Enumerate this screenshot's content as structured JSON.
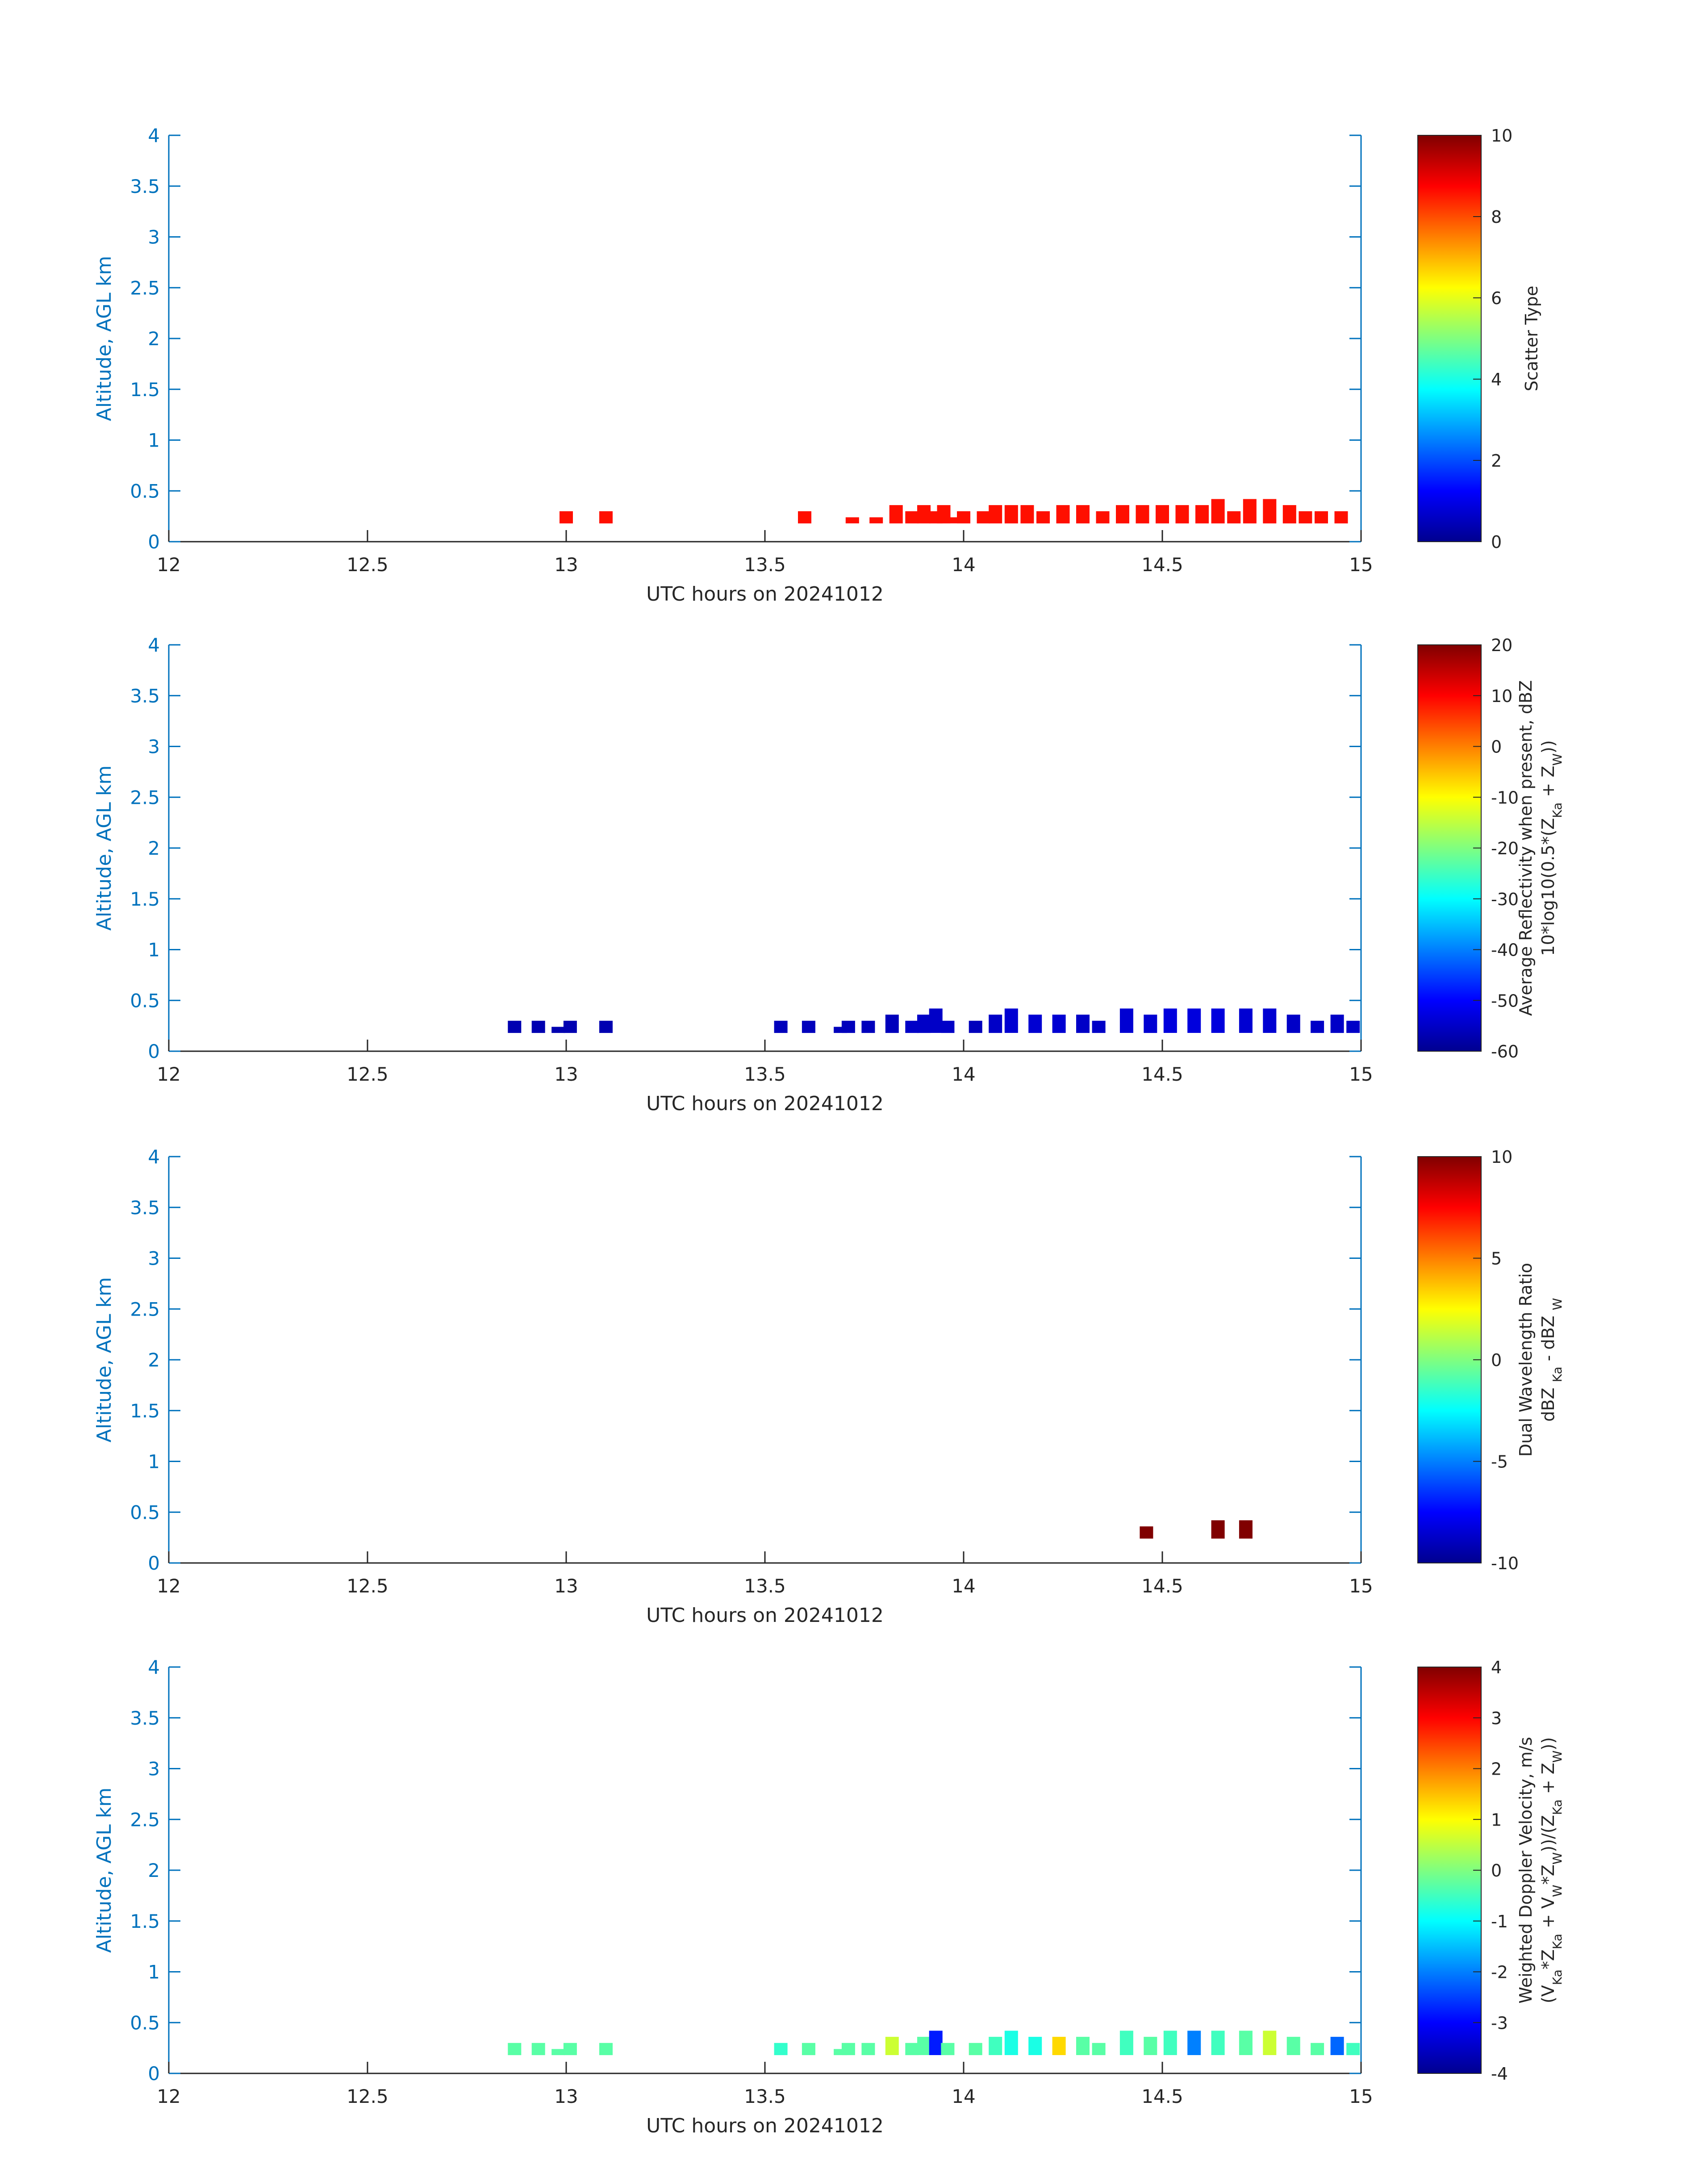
{
  "colors": {
    "axis": "#0072BD",
    "text": "#262626"
  },
  "chart_data": [
    {
      "type": "heatmap",
      "xlabel": "UTC hours on 20241012",
      "ylabel": "Altitude, AGL km",
      "xlim": [
        12,
        15
      ],
      "ylim": [
        0,
        4
      ],
      "x_ticks": [
        "12",
        "12.5",
        "13",
        "13.5",
        "14",
        "14.5",
        "15"
      ],
      "y_ticks": [
        "0",
        "0.5",
        "1",
        "1.5",
        "2",
        "2.5",
        "3",
        "3.5",
        "4"
      ],
      "colorbar": {
        "label_lines": [
          "Scatter Type"
        ],
        "range": [
          0,
          10
        ],
        "ticks": [
          "0",
          "2",
          "4",
          "6",
          "8",
          "10"
        ]
      },
      "columns": [
        {
          "x": 13.0,
          "bottom": 0.18,
          "top": 0.3,
          "value": 8.6
        },
        {
          "x": 13.1,
          "bottom": 0.18,
          "top": 0.3,
          "value": 8.6
        },
        {
          "x": 13.6,
          "bottom": 0.18,
          "top": 0.3,
          "value": 8.6
        },
        {
          "x": 13.72,
          "bottom": 0.18,
          "top": 0.24,
          "value": 8.6
        },
        {
          "x": 13.78,
          "bottom": 0.18,
          "top": 0.24,
          "value": 8.6
        },
        {
          "x": 13.83,
          "bottom": 0.18,
          "top": 0.36,
          "value": 8.6
        },
        {
          "x": 13.87,
          "bottom": 0.18,
          "top": 0.3,
          "value": 8.6
        },
        {
          "x": 13.9,
          "bottom": 0.18,
          "top": 0.36,
          "value": 8.6
        },
        {
          "x": 13.93,
          "bottom": 0.18,
          "top": 0.3,
          "value": 8.6
        },
        {
          "x": 13.95,
          "bottom": 0.18,
          "top": 0.36,
          "value": 8.6
        },
        {
          "x": 13.98,
          "bottom": 0.18,
          "top": 0.24,
          "value": 8.6
        },
        {
          "x": 14.0,
          "bottom": 0.18,
          "top": 0.3,
          "value": 8.6
        },
        {
          "x": 14.05,
          "bottom": 0.18,
          "top": 0.3,
          "value": 8.6
        },
        {
          "x": 14.08,
          "bottom": 0.18,
          "top": 0.36,
          "value": 8.6
        },
        {
          "x": 14.12,
          "bottom": 0.18,
          "top": 0.36,
          "value": 8.6
        },
        {
          "x": 14.16,
          "bottom": 0.18,
          "top": 0.36,
          "value": 8.6
        },
        {
          "x": 14.2,
          "bottom": 0.18,
          "top": 0.3,
          "value": 8.6
        },
        {
          "x": 14.25,
          "bottom": 0.18,
          "top": 0.36,
          "value": 8.6
        },
        {
          "x": 14.3,
          "bottom": 0.18,
          "top": 0.36,
          "value": 8.6
        },
        {
          "x": 14.35,
          "bottom": 0.18,
          "top": 0.3,
          "value": 8.6
        },
        {
          "x": 14.4,
          "bottom": 0.18,
          "top": 0.36,
          "value": 8.6
        },
        {
          "x": 14.45,
          "bottom": 0.18,
          "top": 0.36,
          "value": 8.6
        },
        {
          "x": 14.5,
          "bottom": 0.18,
          "top": 0.36,
          "value": 8.6
        },
        {
          "x": 14.55,
          "bottom": 0.18,
          "top": 0.36,
          "value": 8.6
        },
        {
          "x": 14.6,
          "bottom": 0.18,
          "top": 0.36,
          "value": 8.6
        },
        {
          "x": 14.64,
          "bottom": 0.18,
          "top": 0.42,
          "value": 8.6
        },
        {
          "x": 14.68,
          "bottom": 0.18,
          "top": 0.3,
          "value": 8.6
        },
        {
          "x": 14.72,
          "bottom": 0.18,
          "top": 0.42,
          "value": 8.6
        },
        {
          "x": 14.77,
          "bottom": 0.18,
          "top": 0.42,
          "value": 8.6
        },
        {
          "x": 14.82,
          "bottom": 0.18,
          "top": 0.36,
          "value": 8.6
        },
        {
          "x": 14.86,
          "bottom": 0.18,
          "top": 0.3,
          "value": 8.6
        },
        {
          "x": 14.9,
          "bottom": 0.18,
          "top": 0.3,
          "value": 8.6
        },
        {
          "x": 14.95,
          "bottom": 0.18,
          "top": 0.3,
          "value": 8.6
        }
      ]
    },
    {
      "type": "heatmap",
      "xlabel": "UTC hours on 20241012",
      "ylabel": "Altitude, AGL km",
      "xlim": [
        12,
        15
      ],
      "ylim": [
        0,
        4
      ],
      "x_ticks": [
        "12",
        "12.5",
        "13",
        "13.5",
        "14",
        "14.5",
        "15"
      ],
      "y_ticks": [
        "0",
        "0.5",
        "1",
        "1.5",
        "2",
        "2.5",
        "3",
        "3.5",
        "4"
      ],
      "colorbar": {
        "label_lines": [
          "Average Reflectivity when present, dBZ",
          "10*log10(0.5*(Z<sub>Ka</sub> + Z<sub>W</sub>))"
        ],
        "range": [
          -60,
          20
        ],
        "ticks": [
          "-60",
          "-50",
          "-40",
          "-30",
          "-20",
          "-10",
          "0",
          "10",
          "20"
        ]
      },
      "columns": [
        {
          "x": 12.87,
          "bottom": 0.18,
          "top": 0.3,
          "value": -57
        },
        {
          "x": 12.93,
          "bottom": 0.18,
          "top": 0.3,
          "value": -57
        },
        {
          "x": 12.98,
          "bottom": 0.18,
          "top": 0.24,
          "value": -57
        },
        {
          "x": 13.01,
          "bottom": 0.18,
          "top": 0.3,
          "value": -57
        },
        {
          "x": 13.1,
          "bottom": 0.18,
          "top": 0.3,
          "value": -57
        },
        {
          "x": 13.54,
          "bottom": 0.18,
          "top": 0.3,
          "value": -56
        },
        {
          "x": 13.61,
          "bottom": 0.18,
          "top": 0.3,
          "value": -56
        },
        {
          "x": 13.69,
          "bottom": 0.18,
          "top": 0.24,
          "value": -56
        },
        {
          "x": 13.71,
          "bottom": 0.18,
          "top": 0.3,
          "value": -56
        },
        {
          "x": 13.76,
          "bottom": 0.18,
          "top": 0.3,
          "value": -56
        },
        {
          "x": 13.82,
          "bottom": 0.18,
          "top": 0.36,
          "value": -56
        },
        {
          "x": 13.87,
          "bottom": 0.18,
          "top": 0.3,
          "value": -55
        },
        {
          "x": 13.9,
          "bottom": 0.18,
          "top": 0.36,
          "value": -55
        },
        {
          "x": 13.93,
          "bottom": 0.18,
          "top": 0.42,
          "value": -55
        },
        {
          "x": 13.96,
          "bottom": 0.18,
          "top": 0.3,
          "value": -55
        },
        {
          "x": 14.03,
          "bottom": 0.18,
          "top": 0.3,
          "value": -56
        },
        {
          "x": 14.08,
          "bottom": 0.18,
          "top": 0.36,
          "value": -55
        },
        {
          "x": 14.12,
          "bottom": 0.18,
          "top": 0.42,
          "value": -54
        },
        {
          "x": 14.18,
          "bottom": 0.18,
          "top": 0.36,
          "value": -54
        },
        {
          "x": 14.24,
          "bottom": 0.18,
          "top": 0.36,
          "value": -54
        },
        {
          "x": 14.3,
          "bottom": 0.18,
          "top": 0.36,
          "value": -55
        },
        {
          "x": 14.34,
          "bottom": 0.18,
          "top": 0.3,
          "value": -55
        },
        {
          "x": 14.41,
          "bottom": 0.18,
          "top": 0.42,
          "value": -54
        },
        {
          "x": 14.47,
          "bottom": 0.18,
          "top": 0.36,
          "value": -54
        },
        {
          "x": 14.52,
          "bottom": 0.18,
          "top": 0.42,
          "value": -53
        },
        {
          "x": 14.58,
          "bottom": 0.18,
          "top": 0.42,
          "value": -53
        },
        {
          "x": 14.64,
          "bottom": 0.18,
          "top": 0.42,
          "value": -53
        },
        {
          "x": 14.71,
          "bottom": 0.18,
          "top": 0.42,
          "value": -54
        },
        {
          "x": 14.77,
          "bottom": 0.18,
          "top": 0.42,
          "value": -54
        },
        {
          "x": 14.83,
          "bottom": 0.18,
          "top": 0.36,
          "value": -55
        },
        {
          "x": 14.89,
          "bottom": 0.18,
          "top": 0.3,
          "value": -55
        },
        {
          "x": 14.94,
          "bottom": 0.18,
          "top": 0.36,
          "value": -55
        },
        {
          "x": 14.98,
          "bottom": 0.18,
          "top": 0.3,
          "value": -55
        }
      ]
    },
    {
      "type": "heatmap",
      "xlabel": "UTC hours on 20241012",
      "ylabel": "Altitude, AGL km",
      "xlim": [
        12,
        15
      ],
      "ylim": [
        0,
        4
      ],
      "x_ticks": [
        "12",
        "12.5",
        "13",
        "13.5",
        "14",
        "14.5",
        "15"
      ],
      "y_ticks": [
        "0",
        "0.5",
        "1",
        "1.5",
        "2",
        "2.5",
        "3",
        "3.5",
        "4"
      ],
      "colorbar": {
        "label_lines": [
          "Dual Wavelength Ratio",
          "dBZ <sub>Ka</sub> - dBZ <sub>W</sub>"
        ],
        "range": [
          -10,
          10
        ],
        "ticks": [
          "-10",
          "-5",
          "0",
          "5",
          "10"
        ]
      },
      "columns": [
        {
          "x": 14.46,
          "bottom": 0.24,
          "top": 0.36,
          "value": 10
        },
        {
          "x": 14.64,
          "bottom": 0.24,
          "top": 0.42,
          "value": 10
        },
        {
          "x": 14.71,
          "bottom": 0.24,
          "top": 0.42,
          "value": 10
        }
      ]
    },
    {
      "type": "heatmap",
      "xlabel": "UTC hours on 20241012",
      "ylabel": "Altitude, AGL km",
      "xlim": [
        12,
        15
      ],
      "ylim": [
        0,
        4
      ],
      "x_ticks": [
        "12",
        "12.5",
        "13",
        "13.5",
        "14",
        "14.5",
        "15"
      ],
      "y_ticks": [
        "0",
        "0.5",
        "1",
        "1.5",
        "2",
        "2.5",
        "3",
        "3.5",
        "4"
      ],
      "colorbar": {
        "label_lines": [
          "Weighted Doppler Velocity, m/s",
          "(V<sub>Ka</sub>*Z<sub>Ka</sub> + V<sub>W</sub>*Z<sub>W</sub>))/(Z<sub>Ka</sub> + Z<sub>W</sub>))"
        ],
        "range": [
          -4,
          4
        ],
        "ticks": [
          "-4",
          "-3",
          "-2",
          "-1",
          "0",
          "1",
          "2",
          "3",
          "4"
        ]
      },
      "columns": [
        {
          "x": 12.87,
          "bottom": 0.18,
          "top": 0.3,
          "value": -0.3
        },
        {
          "x": 12.93,
          "bottom": 0.18,
          "top": 0.3,
          "value": -0.3
        },
        {
          "x": 12.98,
          "bottom": 0.18,
          "top": 0.24,
          "value": -0.3
        },
        {
          "x": 13.01,
          "bottom": 0.18,
          "top": 0.3,
          "value": -0.3
        },
        {
          "x": 13.1,
          "bottom": 0.18,
          "top": 0.3,
          "value": -0.3
        },
        {
          "x": 13.54,
          "bottom": 0.18,
          "top": 0.3,
          "value": -0.6
        },
        {
          "x": 13.61,
          "bottom": 0.18,
          "top": 0.3,
          "value": -0.3
        },
        {
          "x": 13.69,
          "bottom": 0.18,
          "top": 0.24,
          "value": -0.3
        },
        {
          "x": 13.71,
          "bottom": 0.18,
          "top": 0.3,
          "value": -0.3
        },
        {
          "x": 13.76,
          "bottom": 0.18,
          "top": 0.3,
          "value": -0.3
        },
        {
          "x": 13.82,
          "bottom": 0.18,
          "top": 0.36,
          "value": 0.6
        },
        {
          "x": 13.87,
          "bottom": 0.18,
          "top": 0.3,
          "value": -0.3
        },
        {
          "x": 13.9,
          "bottom": 0.18,
          "top": 0.36,
          "value": -0.3
        },
        {
          "x": 13.93,
          "bottom": 0.18,
          "top": 0.42,
          "value": -2.8
        },
        {
          "x": 13.96,
          "bottom": 0.18,
          "top": 0.3,
          "value": -0.3
        },
        {
          "x": 14.03,
          "bottom": 0.18,
          "top": 0.3,
          "value": -0.3
        },
        {
          "x": 14.08,
          "bottom": 0.18,
          "top": 0.36,
          "value": -0.5
        },
        {
          "x": 14.12,
          "bottom": 0.18,
          "top": 0.42,
          "value": -0.8
        },
        {
          "x": 14.18,
          "bottom": 0.18,
          "top": 0.36,
          "value": -0.8
        },
        {
          "x": 14.24,
          "bottom": 0.18,
          "top": 0.36,
          "value": 1.3
        },
        {
          "x": 14.3,
          "bottom": 0.18,
          "top": 0.36,
          "value": -0.3
        },
        {
          "x": 14.34,
          "bottom": 0.18,
          "top": 0.3,
          "value": -0.3
        },
        {
          "x": 14.41,
          "bottom": 0.18,
          "top": 0.42,
          "value": -0.5
        },
        {
          "x": 14.47,
          "bottom": 0.18,
          "top": 0.36,
          "value": -0.3
        },
        {
          "x": 14.52,
          "bottom": 0.18,
          "top": 0.42,
          "value": -0.5
        },
        {
          "x": 14.58,
          "bottom": 0.18,
          "top": 0.42,
          "value": -2.0
        },
        {
          "x": 14.64,
          "bottom": 0.18,
          "top": 0.42,
          "value": -0.5
        },
        {
          "x": 14.71,
          "bottom": 0.18,
          "top": 0.42,
          "value": -0.3
        },
        {
          "x": 14.77,
          "bottom": 0.18,
          "top": 0.42,
          "value": 0.6
        },
        {
          "x": 14.83,
          "bottom": 0.18,
          "top": 0.36,
          "value": -0.3
        },
        {
          "x": 14.89,
          "bottom": 0.18,
          "top": 0.3,
          "value": -0.3
        },
        {
          "x": 14.94,
          "bottom": 0.18,
          "top": 0.36,
          "value": -2.2
        },
        {
          "x": 14.98,
          "bottom": 0.18,
          "top": 0.3,
          "value": -0.5
        }
      ]
    }
  ]
}
